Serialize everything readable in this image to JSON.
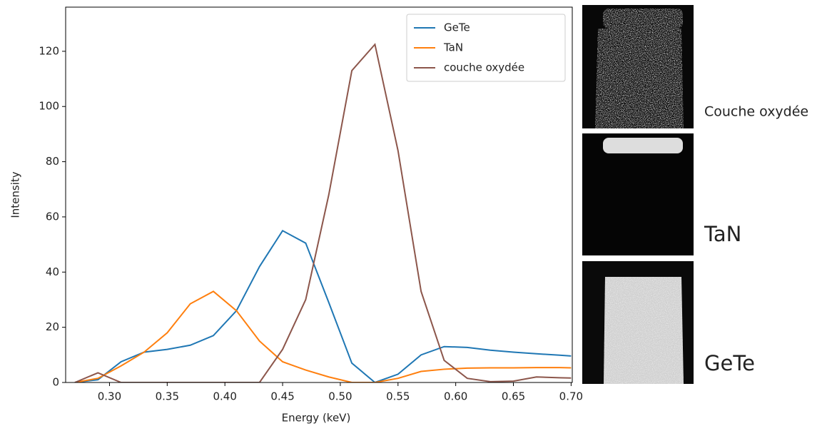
{
  "chart_data": {
    "type": "line",
    "xlabel": "Energy (keV)",
    "ylabel": "Intensity",
    "x": [
      0.27,
      0.29,
      0.31,
      0.33,
      0.35,
      0.37,
      0.39,
      0.41,
      0.43,
      0.45,
      0.47,
      0.49,
      0.51,
      0.53,
      0.55,
      0.57,
      0.59,
      0.61,
      0.63,
      0.65,
      0.67,
      0.69,
      0.7
    ],
    "series": [
      {
        "name": "GeTe",
        "color": "#1f77b4",
        "values": [
          0,
          1,
          7.5,
          11,
          12,
          13.5,
          17,
          26,
          42,
          55,
          50.5,
          29,
          7,
          0,
          3,
          10,
          13,
          12.7,
          11.7,
          11,
          10.4,
          9.9,
          9.6
        ]
      },
      {
        "name": "TaN",
        "color": "#ff7f0e",
        "values": [
          0,
          1.5,
          6,
          11,
          18,
          28.5,
          33,
          26,
          15,
          7.5,
          4.5,
          2,
          0,
          0,
          1.5,
          4,
          4.8,
          5.2,
          5.3,
          5.3,
          5.4,
          5.4,
          5.3
        ]
      },
      {
        "name": "couche oxydée",
        "color": "#8c564b",
        "values": [
          0,
          3.5,
          0,
          0,
          0,
          0,
          0,
          0,
          0,
          12,
          30,
          68,
          113,
          122.5,
          84,
          33,
          8,
          1.5,
          0.3,
          0.5,
          2,
          1.7,
          1.6
        ]
      }
    ],
    "xlim": [
      0.262,
      0.701
    ],
    "ylim": [
      0,
      136
    ],
    "xticks": [
      {
        "value": 0.3,
        "label": "0.30"
      },
      {
        "value": 0.35,
        "label": "0.35"
      },
      {
        "value": 0.4,
        "label": "0.40"
      },
      {
        "value": 0.45,
        "label": "0.45"
      },
      {
        "value": 0.5,
        "label": "0.50"
      },
      {
        "value": 0.55,
        "label": "0.55"
      },
      {
        "value": 0.6,
        "label": "0.60"
      },
      {
        "value": 0.65,
        "label": "0.65"
      },
      {
        "value": 0.7,
        "label": "0.70"
      }
    ],
    "yticks": [
      0,
      20,
      40,
      60,
      80,
      100,
      120
    ],
    "legend": "upper right"
  },
  "panels": [
    {
      "label": "Couche oxydée"
    },
    {
      "label": "TaN"
    },
    {
      "label": "GeTe"
    }
  ]
}
